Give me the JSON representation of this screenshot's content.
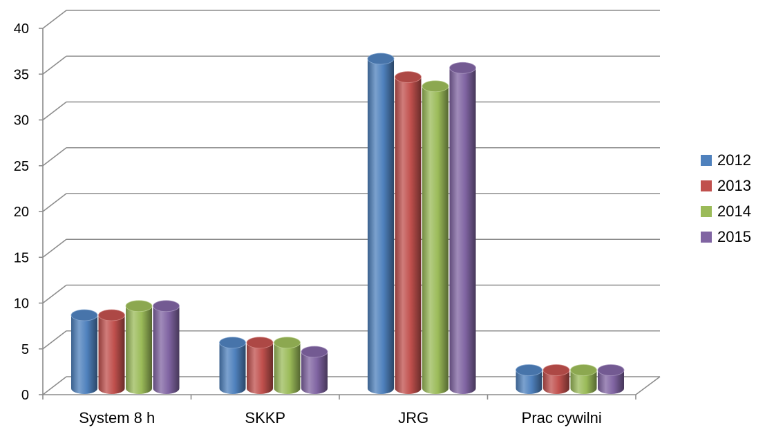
{
  "chart_data": {
    "type": "bar",
    "categories": [
      "System 8 h",
      "SKKP",
      "JRG",
      "Prac cywilni"
    ],
    "series": [
      {
        "name": "2012",
        "values": [
          8,
          5,
          36,
          2
        ],
        "color": "#4f81bd"
      },
      {
        "name": "2013",
        "values": [
          8,
          5,
          34,
          2
        ],
        "color": "#c0504d"
      },
      {
        "name": "2014",
        "values": [
          9,
          5,
          33,
          2
        ],
        "color": "#9bbb59"
      },
      {
        "name": "2015",
        "values": [
          9,
          4,
          35,
          2
        ],
        "color": "#8064a2"
      }
    ],
    "ylim": [
      0,
      40
    ],
    "yticks": [
      "0",
      "5",
      "10",
      "15",
      "20",
      "25",
      "30",
      "35",
      "40"
    ],
    "grid": true,
    "legend_position": "right",
    "style": "3d-cylinder"
  }
}
